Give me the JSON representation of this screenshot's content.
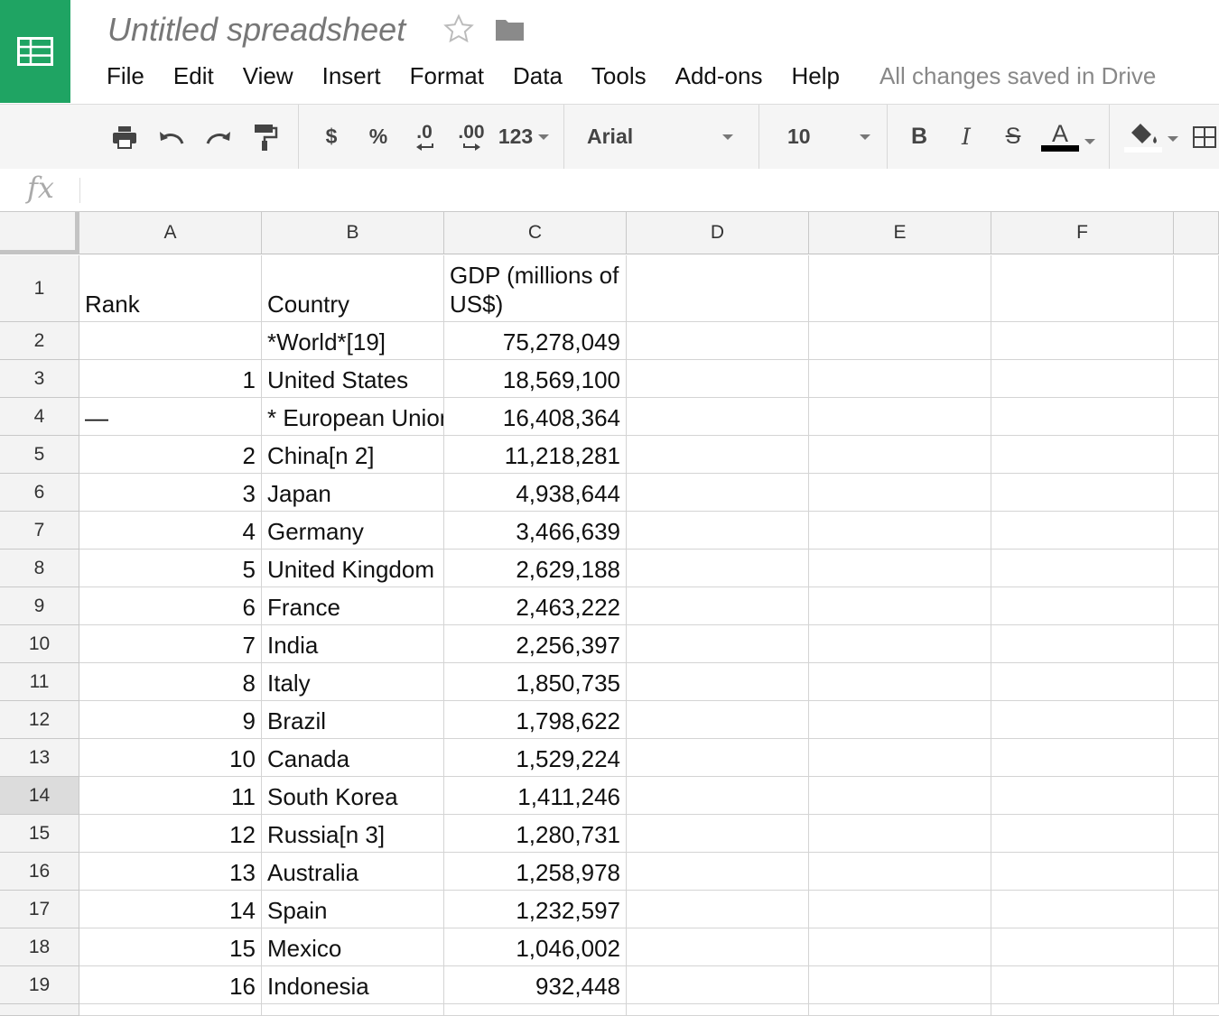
{
  "doc": {
    "title": "Untitled spreadsheet",
    "saved_status": "All changes saved in Drive"
  },
  "menu": [
    "File",
    "Edit",
    "View",
    "Insert",
    "Format",
    "Data",
    "Tools",
    "Add-ons",
    "Help"
  ],
  "toolbar": {
    "currency": "$",
    "percent": "%",
    "decrease_decimals": ".0",
    "increase_decimals": ".00",
    "more_formats": "123",
    "font": "Arial",
    "font_size": "10",
    "bold": "B",
    "italic": "I",
    "strikethrough": "S",
    "text_color": "A",
    "text_color_value": "#000000"
  },
  "formula_bar": {
    "label": "fx",
    "value": ""
  },
  "columns": [
    "A",
    "B",
    "C",
    "D",
    "E",
    "F"
  ],
  "rows": [
    {
      "num": "1",
      "a": "Rank",
      "b": "Country",
      "c": "GDP (millions of US$)"
    },
    {
      "num": "2",
      "a": "",
      "b": "*World*[19]",
      "c": "75,278,049"
    },
    {
      "num": "3",
      "a": "1",
      "b": "United States",
      "c": "18,569,100"
    },
    {
      "num": "4",
      "a": "—",
      "b": "* European Union",
      "c": "16,408,364"
    },
    {
      "num": "5",
      "a": "2",
      "b": "China[n 2]",
      "c": "11,218,281"
    },
    {
      "num": "6",
      "a": "3",
      "b": "Japan",
      "c": "4,938,644"
    },
    {
      "num": "7",
      "a": "4",
      "b": "Germany",
      "c": "3,466,639"
    },
    {
      "num": "8",
      "a": "5",
      "b": "United Kingdom",
      "c": "2,629,188"
    },
    {
      "num": "9",
      "a": "6",
      "b": "France",
      "c": "2,463,222"
    },
    {
      "num": "10",
      "a": "7",
      "b": "India",
      "c": "2,256,397"
    },
    {
      "num": "11",
      "a": "8",
      "b": "Italy",
      "c": "1,850,735"
    },
    {
      "num": "12",
      "a": "9",
      "b": "Brazil",
      "c": "1,798,622"
    },
    {
      "num": "13",
      "a": "10",
      "b": "Canada",
      "c": "1,529,224"
    },
    {
      "num": "14",
      "a": "11",
      "b": "South Korea",
      "c": "1,411,246"
    },
    {
      "num": "15",
      "a": "12",
      "b": "Russia[n 3]",
      "c": "1,280,731"
    },
    {
      "num": "16",
      "a": "13",
      "b": "Australia",
      "c": "1,258,978"
    },
    {
      "num": "17",
      "a": "14",
      "b": "Spain",
      "c": "1,232,597"
    },
    {
      "num": "18",
      "a": "15",
      "b": "Mexico",
      "c": "1,046,002"
    },
    {
      "num": "19",
      "a": "16",
      "b": "Indonesia",
      "c": "932,448"
    }
  ],
  "selected_row": "14",
  "colors": {
    "brand": "#1fa463"
  }
}
